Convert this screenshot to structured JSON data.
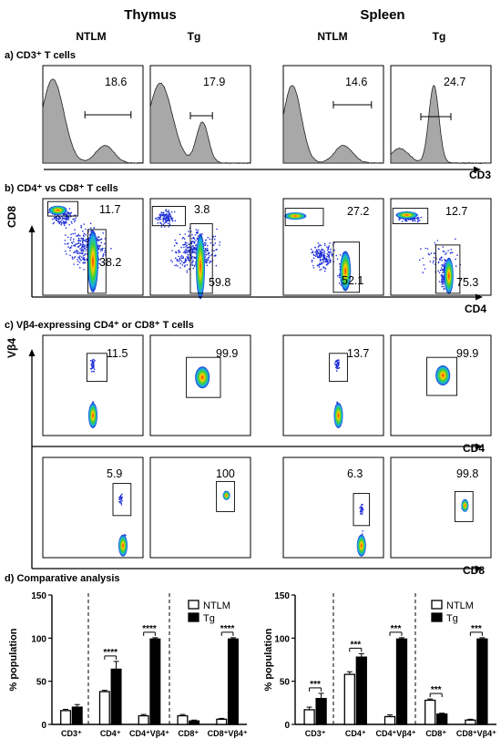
{
  "header": {
    "thymus": "Thymus",
    "spleen": "Spleen",
    "columns": [
      "NTLM",
      "Tg",
      "NTLM",
      "Tg"
    ]
  },
  "sections": {
    "a": "a) CD3⁺ T cells",
    "b": "b) CD4⁺ vs CD8⁺ T cells",
    "c": "c) Vβ4-expressing CD4⁺ or CD8⁺ T cells",
    "d": "d) Comparative analysis"
  },
  "panel_a": {
    "axis": "CD3",
    "values": [
      "18.6",
      "17.9",
      "14.6",
      "24.7"
    ]
  },
  "panel_b": {
    "xaxis": "CD4",
    "yaxis": "CD8",
    "top_values": [
      "11.7",
      "3.8",
      "27.2",
      "12.7"
    ],
    "bottom_values": [
      "38.2",
      "59.8",
      "52.1",
      "75.3"
    ]
  },
  "panel_c": {
    "yaxis": "Vβ4",
    "row1_axis": "CD4",
    "row2_axis": "CD8",
    "row1_values": [
      "11.5",
      "99.9",
      "13.7",
      "99.9"
    ],
    "row2_values": [
      "5.9",
      "100",
      "6.3",
      "99.8"
    ]
  },
  "colors": {
    "ntlm": "#ffffff",
    "tg": "#000000",
    "histogram_fill": "#a8a8a8"
  },
  "chart_data": [
    {
      "type": "bar",
      "title": "Thymus",
      "ylabel": "% population",
      "ylim": [
        0,
        150
      ],
      "yticks": [
        0,
        50,
        100,
        150
      ],
      "categories": [
        "CD3⁺",
        "CD4⁺",
        "CD4⁺Vβ4⁺",
        "CD8⁺",
        "CD8⁺Vβ4⁺"
      ],
      "series": [
        {
          "name": "NTLM",
          "values": [
            16,
            38,
            10,
            10,
            6
          ],
          "errors": [
            1.5,
            1.5,
            1.5,
            1.5,
            1
          ]
        },
        {
          "name": "Tg",
          "values": [
            20,
            64,
            99,
            4,
            99
          ],
          "errors": [
            3,
            9,
            1.5,
            1,
            1.5
          ]
        }
      ],
      "significance": [
        "",
        "****",
        "****",
        "",
        "****"
      ],
      "legend": "top-right"
    },
    {
      "type": "bar",
      "title": "Spleen",
      "ylabel": "% population",
      "ylim": [
        0,
        150
      ],
      "yticks": [
        0,
        50,
        100,
        150
      ],
      "categories": [
        "CD3⁺",
        "CD4⁺",
        "CD4⁺Vβ4⁺",
        "CD8⁺",
        "CD8⁺Vβ4⁺"
      ],
      "series": [
        {
          "name": "NTLM",
          "values": [
            17,
            58,
            9,
            28,
            5
          ],
          "errors": [
            3,
            3,
            2,
            1.5,
            1
          ]
        },
        {
          "name": "Tg",
          "values": [
            30,
            78,
            99,
            12,
            99
          ],
          "errors": [
            6,
            4,
            1.5,
            1,
            1.5
          ]
        }
      ],
      "significance": [
        "***",
        "***",
        "***",
        "***",
        "***"
      ],
      "legend": "top-right"
    }
  ]
}
